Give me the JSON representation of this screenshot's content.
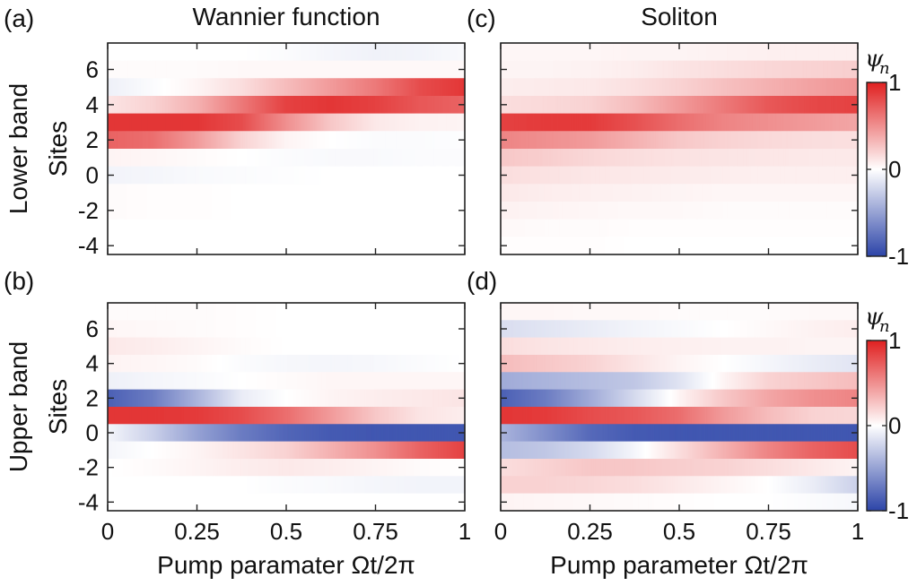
{
  "chart_data": {
    "type": "heatmap",
    "sites": [
      7,
      6,
      5,
      4,
      3,
      2,
      1,
      0,
      -1,
      -2,
      -3,
      -4
    ],
    "x": [
      0,
      0.125,
      0.25,
      0.375,
      0.5,
      0.625,
      0.75,
      0.875,
      1
    ],
    "colorscale": {
      "min": -1,
      "max": 1,
      "neg_color": "#2c44a8",
      "mid_color": "#ffffff",
      "pos_color": "#e02020"
    },
    "panels": [
      {
        "id": "a",
        "panel_label": "(a)",
        "column_title": "Wannier function",
        "row_label": "Lower band",
        "ylabel": "Sites",
        "xlabel": "",
        "values": [
          [
            0.0,
            0.0,
            0.0,
            0.0,
            -0.02,
            -0.05,
            -0.07,
            -0.06,
            -0.03
          ],
          [
            0.02,
            0.02,
            0.02,
            0.03,
            0.03,
            0.03,
            0.03,
            0.03,
            0.03
          ],
          [
            -0.08,
            -0.02,
            0.05,
            0.15,
            0.3,
            0.45,
            0.6,
            0.8,
            0.9
          ],
          [
            0.12,
            0.2,
            0.35,
            0.6,
            0.85,
            0.9,
            0.85,
            0.75,
            0.7
          ],
          [
            0.9,
            0.9,
            0.9,
            0.8,
            0.5,
            0.25,
            0.1,
            0.06,
            0.05
          ],
          [
            0.7,
            0.65,
            0.45,
            0.2,
            0.05,
            0.0,
            -0.02,
            -0.02,
            -0.01
          ],
          [
            0.05,
            0.04,
            0.02,
            0.0,
            -0.02,
            -0.03,
            -0.03,
            -0.02,
            -0.02
          ],
          [
            -0.06,
            -0.05,
            -0.03,
            -0.02,
            -0.01,
            0.0,
            0.0,
            0.0,
            0.0
          ],
          [
            0.02,
            0.01,
            0.01,
            0.0,
            0.0,
            0.0,
            0.0,
            0.0,
            0.0
          ],
          [
            0.02,
            0.01,
            0.01,
            0.0,
            0.0,
            0.0,
            0.0,
            0.0,
            0.0
          ],
          [
            0.0,
            0.0,
            0.0,
            0.0,
            0.0,
            0.0,
            0.0,
            0.0,
            0.0
          ],
          [
            0.0,
            0.0,
            0.0,
            0.0,
            0.0,
            0.0,
            0.0,
            0.0,
            0.0
          ]
        ]
      },
      {
        "id": "c",
        "panel_label": "(c)",
        "column_title": "Soliton",
        "row_label": "",
        "ylabel": "",
        "xlabel": "",
        "values": [
          [
            0.04,
            0.04,
            0.04,
            0.05,
            0.05,
            0.06,
            0.07,
            0.07,
            0.07
          ],
          [
            0.05,
            0.05,
            0.06,
            0.08,
            0.12,
            0.15,
            0.18,
            0.2,
            0.22
          ],
          [
            0.08,
            0.09,
            0.1,
            0.14,
            0.2,
            0.28,
            0.35,
            0.42,
            0.48
          ],
          [
            0.15,
            0.17,
            0.2,
            0.3,
            0.45,
            0.6,
            0.75,
            0.82,
            0.85
          ],
          [
            0.85,
            0.88,
            0.88,
            0.78,
            0.65,
            0.55,
            0.5,
            0.45,
            0.4
          ],
          [
            0.55,
            0.5,
            0.45,
            0.35,
            0.25,
            0.2,
            0.17,
            0.15,
            0.14
          ],
          [
            0.25,
            0.22,
            0.18,
            0.15,
            0.13,
            0.12,
            0.11,
            0.1,
            0.1
          ],
          [
            0.15,
            0.13,
            0.11,
            0.1,
            0.09,
            0.08,
            0.07,
            0.07,
            0.07
          ],
          [
            0.1,
            0.08,
            0.07,
            0.06,
            0.05,
            0.04,
            0.04,
            0.04,
            0.04
          ],
          [
            0.06,
            0.05,
            0.04,
            0.03,
            0.03,
            0.02,
            0.02,
            0.02,
            0.02
          ],
          [
            0.03,
            0.02,
            0.02,
            0.01,
            0.01,
            0.01,
            0.01,
            0.01,
            0.01
          ],
          [
            0.01,
            0.01,
            0.01,
            0.0,
            0.0,
            0.0,
            0.0,
            0.0,
            0.0
          ]
        ]
      },
      {
        "id": "b",
        "panel_label": "(b)",
        "column_title": "",
        "row_label": "Upper band",
        "ylabel": "Sites",
        "xlabel": "Pump paramater Ωt/2π",
        "values": [
          [
            0.02,
            0.02,
            0.02,
            0.01,
            0.0,
            0.0,
            0.0,
            0.0,
            0.0
          ],
          [
            0.04,
            0.03,
            0.02,
            0.01,
            0.0,
            0.0,
            0.0,
            0.0,
            0.0
          ],
          [
            0.1,
            0.08,
            0.05,
            0.02,
            0.0,
            0.0,
            0.0,
            0.0,
            0.0
          ],
          [
            0.05,
            0.04,
            0.02,
            -0.02,
            -0.04,
            -0.05,
            -0.04,
            -0.02,
            0.0
          ],
          [
            -0.08,
            -0.05,
            -0.03,
            0.0,
            0.02,
            0.04,
            0.04,
            0.04,
            0.04
          ],
          [
            -0.85,
            -0.7,
            -0.4,
            -0.1,
            0.0,
            0.05,
            0.08,
            0.1,
            0.12
          ],
          [
            0.9,
            0.9,
            0.88,
            0.8,
            0.65,
            0.45,
            0.25,
            0.12,
            0.08
          ],
          [
            -0.05,
            -0.25,
            -0.5,
            -0.7,
            -0.82,
            -0.88,
            -0.9,
            -0.9,
            -0.9
          ],
          [
            -0.05,
            0.0,
            0.05,
            0.12,
            0.2,
            0.35,
            0.5,
            0.7,
            0.85
          ],
          [
            0.0,
            0.02,
            0.05,
            0.08,
            0.1,
            0.08,
            0.05,
            0.02,
            0.0
          ],
          [
            0.0,
            0.0,
            0.0,
            0.0,
            -0.02,
            -0.03,
            -0.05,
            -0.06,
            -0.06
          ],
          [
            0.0,
            0.0,
            0.0,
            0.0,
            0.0,
            0.0,
            0.0,
            0.0,
            0.0
          ]
        ]
      },
      {
        "id": "d",
        "panel_label": "(d)",
        "column_title": "",
        "row_label": "",
        "ylabel": "",
        "xlabel": "Pump parameter Ωt/2π",
        "values": [
          [
            0.04,
            0.04,
            0.03,
            0.03,
            0.02,
            0.02,
            0.02,
            0.03,
            0.03
          ],
          [
            -0.18,
            -0.14,
            -0.1,
            -0.06,
            -0.03,
            0.0,
            0.03,
            0.06,
            0.08
          ],
          [
            0.15,
            0.12,
            0.1,
            0.08,
            0.07,
            0.06,
            0.06,
            0.05,
            0.05
          ],
          [
            0.3,
            0.25,
            0.2,
            0.12,
            0.05,
            0.0,
            -0.05,
            -0.1,
            -0.14
          ],
          [
            -0.45,
            -0.4,
            -0.35,
            -0.3,
            -0.15,
            0.05,
            0.2,
            0.25,
            0.3
          ],
          [
            -0.85,
            -0.7,
            -0.45,
            -0.2,
            0.05,
            0.25,
            0.4,
            0.5,
            0.55
          ],
          [
            0.9,
            0.88,
            0.8,
            0.75,
            0.65,
            0.45,
            0.3,
            0.2,
            0.18
          ],
          [
            -0.4,
            -0.6,
            -0.8,
            -0.88,
            -0.9,
            -0.9,
            -0.9,
            -0.9,
            -0.9
          ],
          [
            -0.35,
            -0.3,
            -0.2,
            -0.05,
            0.15,
            0.35,
            0.55,
            0.7,
            0.8
          ],
          [
            0.15,
            0.2,
            0.25,
            0.25,
            0.22,
            0.2,
            0.15,
            0.1,
            0.05
          ],
          [
            0.2,
            0.2,
            0.18,
            0.15,
            0.1,
            0.05,
            0.0,
            -0.1,
            -0.25
          ],
          [
            0.05,
            0.04,
            0.03,
            0.02,
            0.01,
            0.0,
            0.0,
            -0.02,
            -0.04
          ]
        ]
      }
    ],
    "yticks": [
      6,
      4,
      2,
      0,
      -2,
      -4
    ],
    "xticks": [
      {
        "value": 0,
        "label": "0"
      },
      {
        "value": 0.25,
        "label": "0.25"
      },
      {
        "value": 0.5,
        "label": "0.5"
      },
      {
        "value": 0.75,
        "label": "0.75"
      },
      {
        "value": 1,
        "label": "1"
      }
    ],
    "colorbars": [
      {
        "symbol": "ψ",
        "subscript": "n",
        "ticks": [
          {
            "value": 1,
            "label": "1"
          },
          {
            "value": 0,
            "label": "0"
          },
          {
            "value": -1,
            "label": "-1"
          }
        ]
      },
      {
        "symbol": "ψ",
        "subscript": "n",
        "ticks": [
          {
            "value": 1,
            "label": "1"
          },
          {
            "value": 0,
            "label": "0"
          },
          {
            "value": -1,
            "label": "-1"
          }
        ]
      }
    ]
  }
}
